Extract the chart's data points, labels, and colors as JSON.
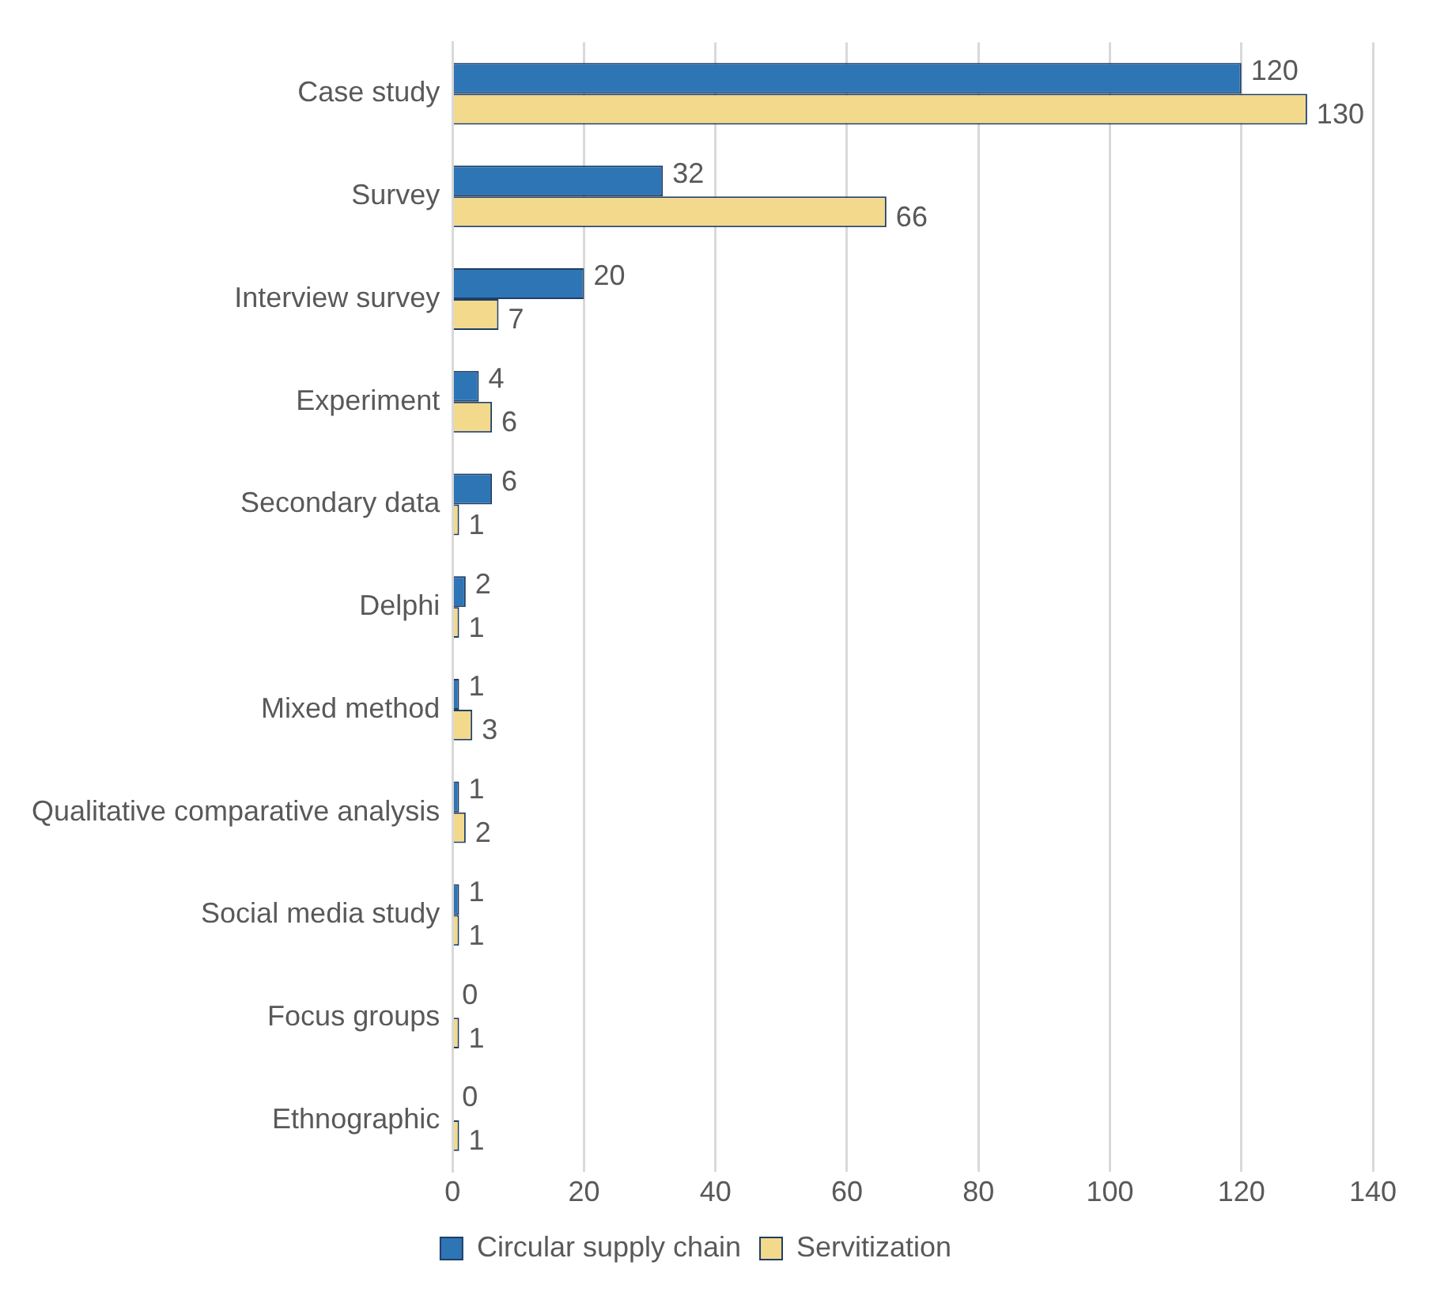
{
  "chart_data": {
    "type": "bar",
    "orientation": "horizontal",
    "categories": [
      "Case study",
      "Survey",
      "Interview survey",
      "Experiment",
      "Secondary data",
      "Delphi",
      "Mixed method",
      "Qualitative comparative analysis",
      "Social media study",
      "Focus groups",
      "Ethnographic"
    ],
    "series": [
      {
        "name": "Circular supply chain",
        "color": "#2e75b6",
        "values": [
          120,
          32,
          20,
          4,
          6,
          2,
          1,
          1,
          1,
          0,
          0
        ]
      },
      {
        "name": "Servitization",
        "color": "#f2d98c",
        "values": [
          130,
          66,
          7,
          6,
          1,
          1,
          3,
          2,
          1,
          1,
          1
        ]
      }
    ],
    "xlim": [
      0,
      140
    ],
    "xticks": [
      0,
      20,
      40,
      60,
      80,
      100,
      120,
      140
    ],
    "grid": "x",
    "legend": "bottom",
    "data_labels": true
  }
}
